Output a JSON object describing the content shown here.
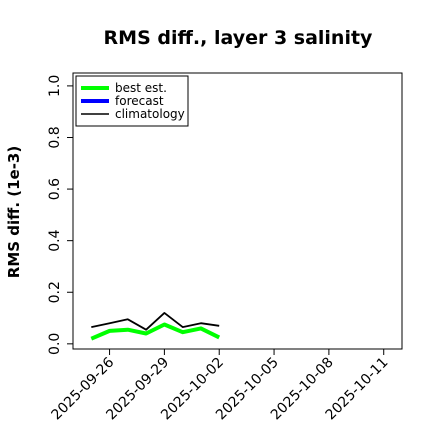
{
  "chart_data": {
    "type": "line",
    "title": "RMS diff., layer 3 salinity",
    "xlabel": "",
    "ylabel": "RMS diff. (1e-3)",
    "ylim": [
      -0.02,
      1.05
    ],
    "xlim": [
      "2025-09-24",
      "2025-10-12"
    ],
    "y_ticks": [
      0.0,
      0.2,
      0.4,
      0.6,
      0.8,
      1.0
    ],
    "y_tick_labels": [
      "0.0",
      "0.2",
      "0.4",
      "0.6",
      "0.8",
      "1.0"
    ],
    "x_ticks": [
      "2025-09-26",
      "2025-09-29",
      "2025-10-02",
      "2025-10-05",
      "2025-10-08",
      "2025-10-11"
    ],
    "x_tick_colors": [
      "#000000",
      "#000000",
      "#228b22",
      "#000000",
      "#000000",
      "#000000"
    ],
    "grid": false,
    "legend": "top-left",
    "series": [
      {
        "name": "best est.",
        "color": "#00ff00",
        "x": [
          "2025-09-25",
          "2025-09-26",
          "2025-09-27",
          "2025-09-28",
          "2025-09-29",
          "2025-09-30",
          "2025-10-01",
          "2025-10-02"
        ],
        "values": [
          0.02,
          0.05,
          0.055,
          0.04,
          0.075,
          0.045,
          0.06,
          0.025
        ]
      },
      {
        "name": "forecast",
        "color": "#0000ff",
        "x": [],
        "values": []
      },
      {
        "name": "climatology",
        "color": "#000000",
        "x": [
          "2025-09-25",
          "2025-09-26",
          "2025-09-27",
          "2025-09-28",
          "2025-09-29",
          "2025-09-30",
          "2025-10-01",
          "2025-10-02"
        ],
        "values": [
          0.065,
          0.08,
          0.095,
          0.055,
          0.12,
          0.065,
          0.08,
          0.07
        ]
      }
    ]
  }
}
